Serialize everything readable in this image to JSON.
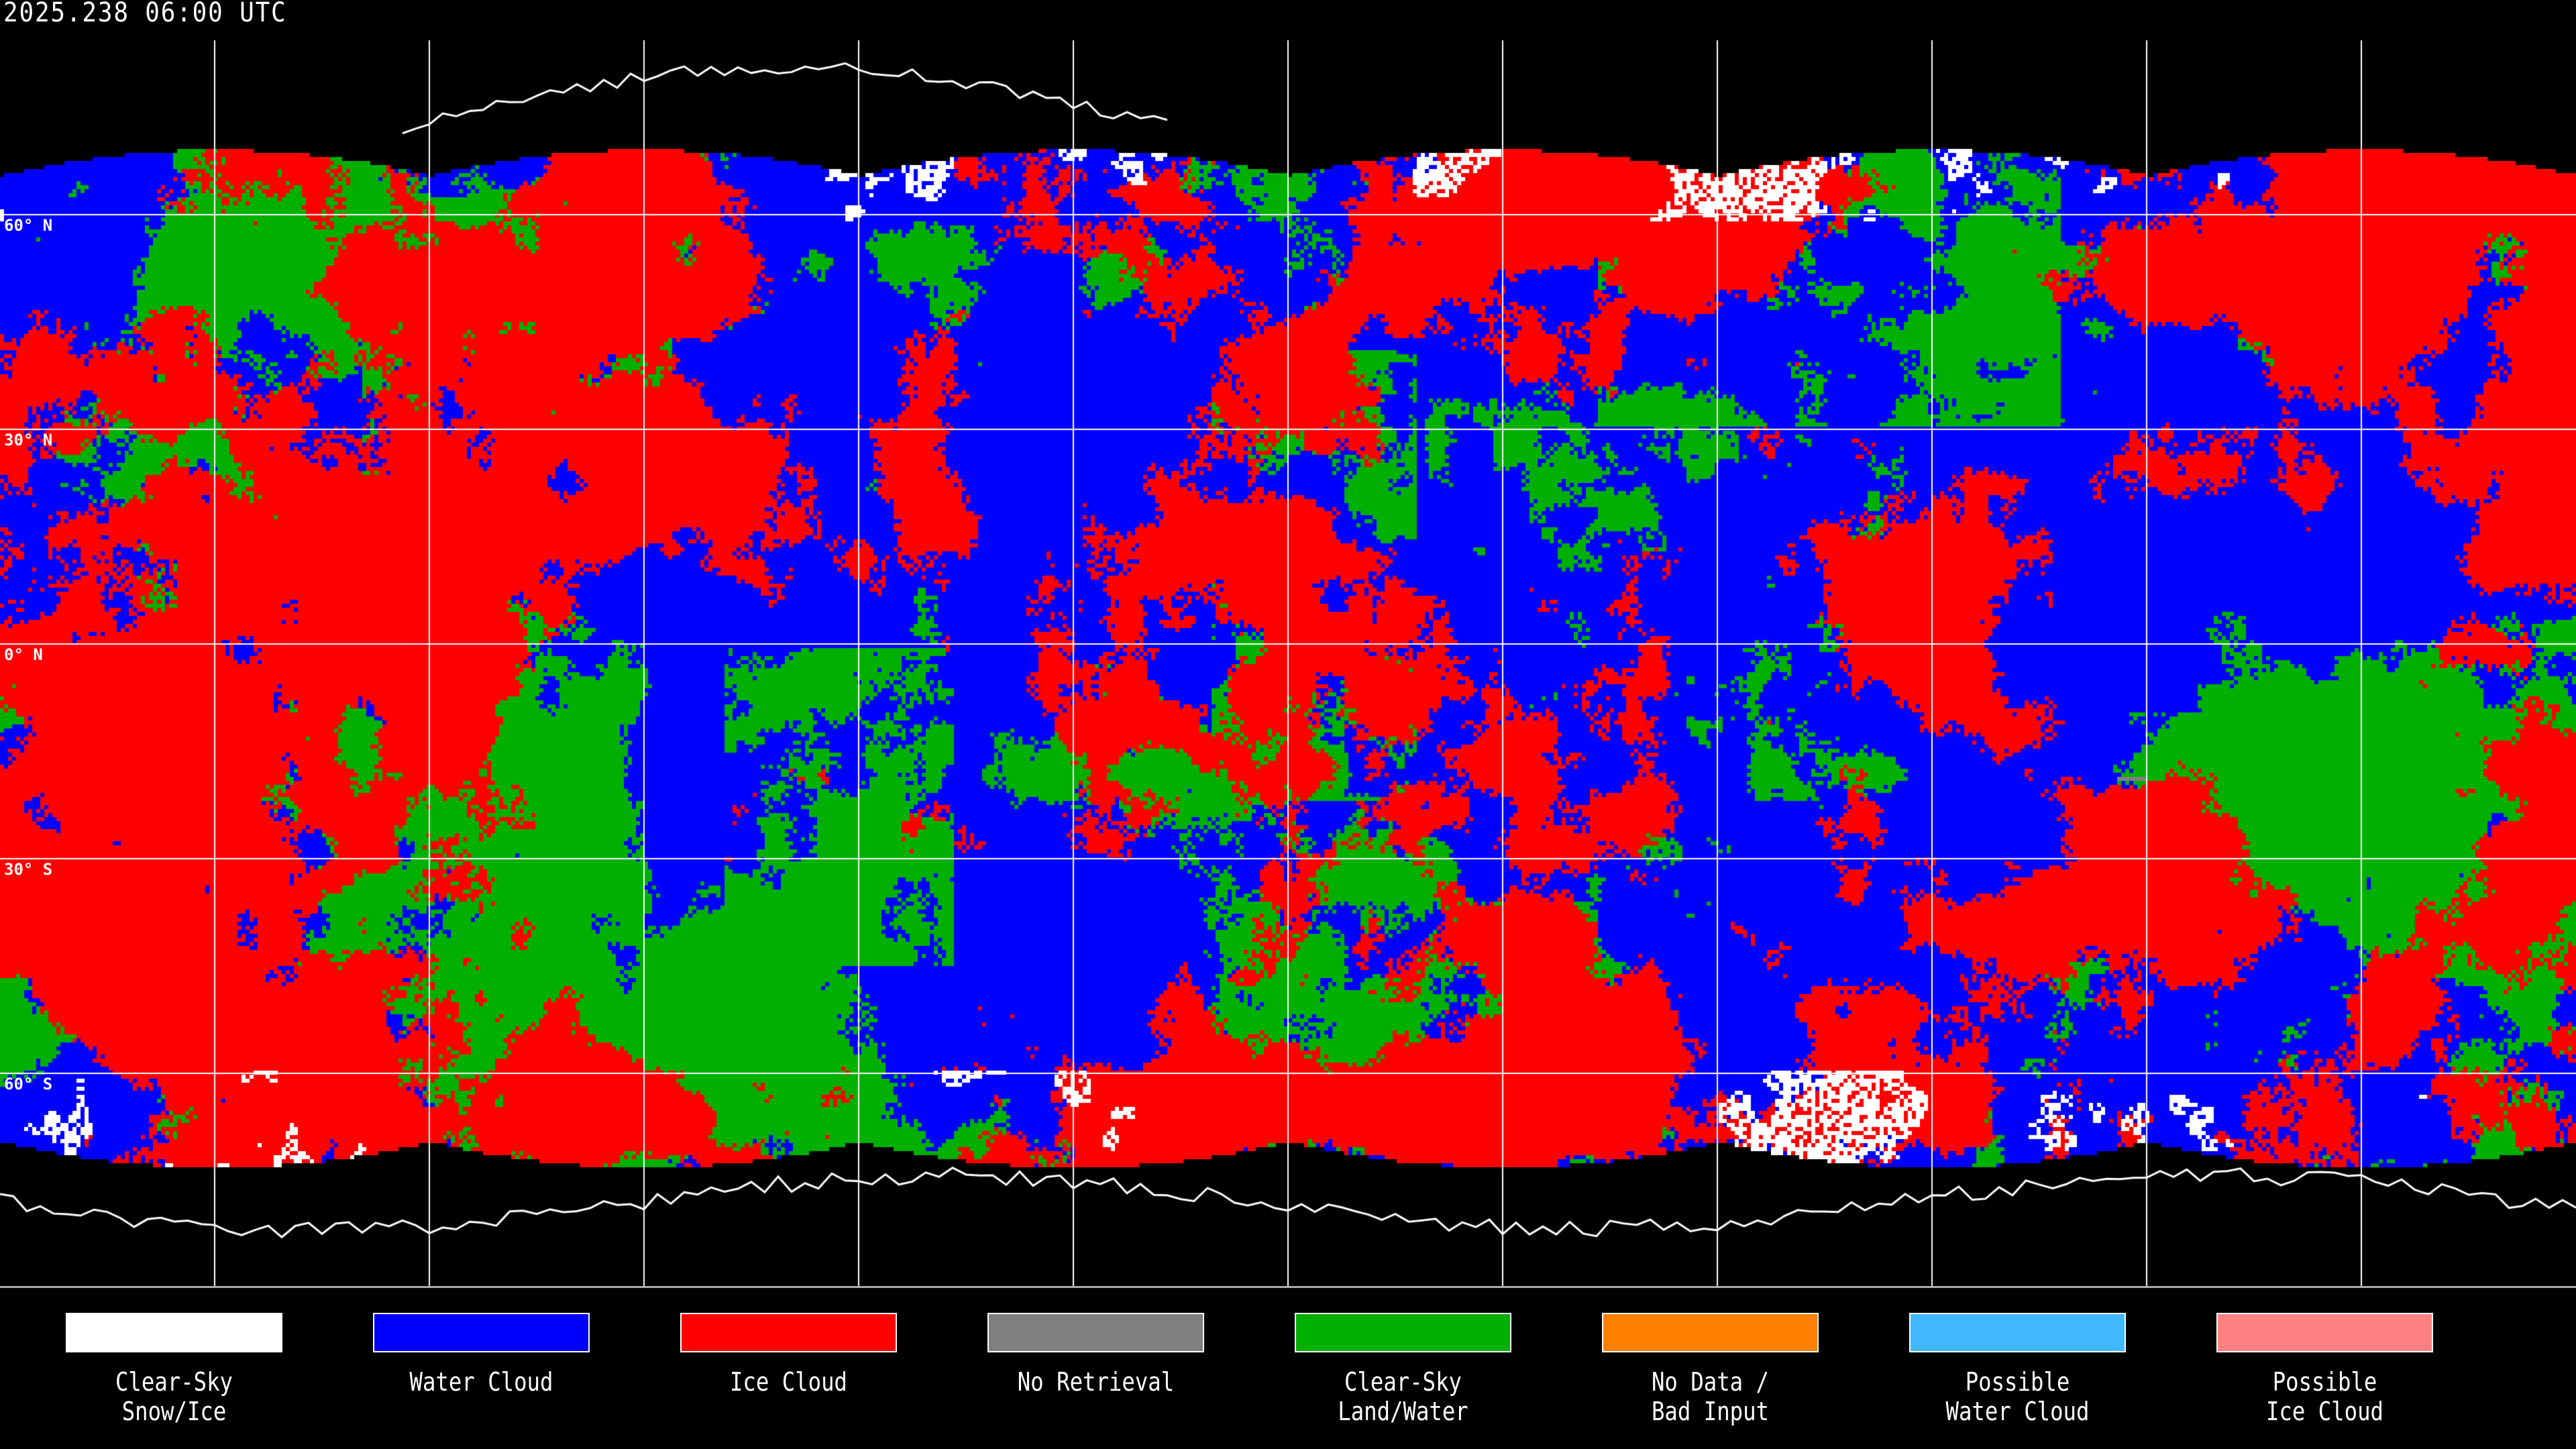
{
  "timestamp": "2025.238 06:00 UTC",
  "lat_labels": [
    "60° N",
    "30° N",
    "0° N",
    "30° S",
    "60° S"
  ],
  "map": {
    "projection": "equirectangular",
    "grid_spacing_deg": 30,
    "grid_color": "#ffffff",
    "coastline_color": "#ffffff",
    "background": "#000000"
  },
  "legend": [
    {
      "label": "Clear-Sky\nSnow/Ice",
      "color": "#ffffff"
    },
    {
      "label": "Water Cloud",
      "color": "#0000ff"
    },
    {
      "label": "Ice Cloud",
      "color": "#ff0000"
    },
    {
      "label": "No Retrieval",
      "color": "#808080"
    },
    {
      "label": "Clear-Sky\nLand/Water",
      "color": "#00b000"
    },
    {
      "label": "No Data /\nBad Input",
      "color": "#ff8000"
    },
    {
      "label": "Possible\nWater Cloud",
      "color": "#40b8ff"
    },
    {
      "label": "Possible\nIce Cloud",
      "color": "#ff8080"
    }
  ]
}
